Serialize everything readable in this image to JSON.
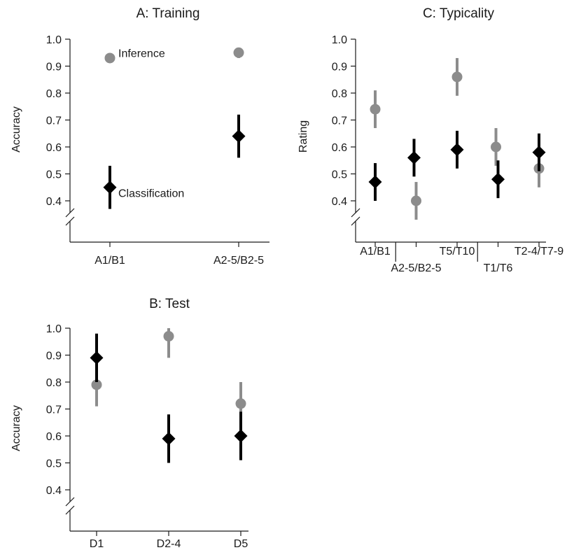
{
  "colors": {
    "inference": "#8c8c8c",
    "classification": "#000000",
    "axis": "#1a1a1a"
  },
  "chart_data": [
    {
      "id": "training",
      "type": "scatter",
      "title": "A: Training",
      "ylabel": "Accuracy",
      "xlabel": "",
      "ylim": [
        0.4,
        1.0
      ],
      "yticks": [
        "0.4",
        "0.5",
        "0.6",
        "0.7",
        "0.8",
        "0.9",
        "1.0"
      ],
      "axis_break": true,
      "categories": [
        "A1/B1",
        "A2-5/B2-5"
      ],
      "series": [
        {
          "key": "inference",
          "marker": "circle",
          "values": [
            0.93,
            0.95
          ],
          "err_low": [
            0.92,
            0.93
          ],
          "err_high": [
            0.94,
            0.96
          ]
        },
        {
          "key": "classification",
          "marker": "diamond",
          "values": [
            0.45,
            0.64
          ],
          "err_low": [
            0.37,
            0.56
          ],
          "err_high": [
            0.53,
            0.72
          ]
        }
      ],
      "annotations": [
        {
          "text": "Inference",
          "category": 0,
          "y": 0.95
        },
        {
          "text": "Classification",
          "category": 0,
          "y": 0.43
        }
      ]
    },
    {
      "id": "typicality",
      "type": "scatter",
      "title": "C: Typicality",
      "ylabel": "Rating",
      "xlabel": "",
      "ylim": [
        0.4,
        1.0
      ],
      "yticks": [
        "0.4",
        "0.5",
        "0.6",
        "0.7",
        "0.8",
        "0.9",
        "1.0"
      ],
      "axis_break": true,
      "categories": [
        "A1/B1",
        "A2-5/B2-5",
        "T5/T10",
        "T1/T6",
        "T2-4/T7-9"
      ],
      "category_label_row": [
        0,
        1,
        0,
        1,
        0
      ],
      "group_separators_after": [
        0,
        2
      ],
      "series": [
        {
          "key": "inference",
          "marker": "circle",
          "values": [
            0.74,
            0.4,
            0.86,
            0.6,
            0.52
          ],
          "err_low": [
            0.67,
            0.33,
            0.79,
            0.53,
            0.45
          ],
          "err_high": [
            0.81,
            0.47,
            0.93,
            0.67,
            0.59
          ]
        },
        {
          "key": "classification",
          "marker": "diamond",
          "values": [
            0.47,
            0.56,
            0.59,
            0.48,
            0.58
          ],
          "err_low": [
            0.4,
            0.49,
            0.52,
            0.41,
            0.51
          ],
          "err_high": [
            0.54,
            0.63,
            0.66,
            0.55,
            0.65
          ]
        }
      ]
    },
    {
      "id": "test",
      "type": "scatter",
      "title": "B: Test",
      "ylabel": "Accuracy",
      "xlabel": "",
      "ylim": [
        0.4,
        1.0
      ],
      "yticks": [
        "0.4",
        "0.5",
        "0.6",
        "0.7",
        "0.8",
        "0.9",
        "1.0"
      ],
      "axis_break": true,
      "categories": [
        "D1",
        "D2-4",
        "D5"
      ],
      "series": [
        {
          "key": "inference",
          "marker": "circle",
          "values": [
            0.79,
            0.97,
            0.72
          ],
          "err_low": [
            0.71,
            0.89,
            0.64
          ],
          "err_high": [
            0.87,
            1.0,
            0.8
          ]
        },
        {
          "key": "classification",
          "marker": "diamond",
          "values": [
            0.89,
            0.59,
            0.6
          ],
          "err_low": [
            0.8,
            0.5,
            0.51
          ],
          "err_high": [
            0.98,
            0.68,
            0.69
          ]
        }
      ]
    }
  ]
}
